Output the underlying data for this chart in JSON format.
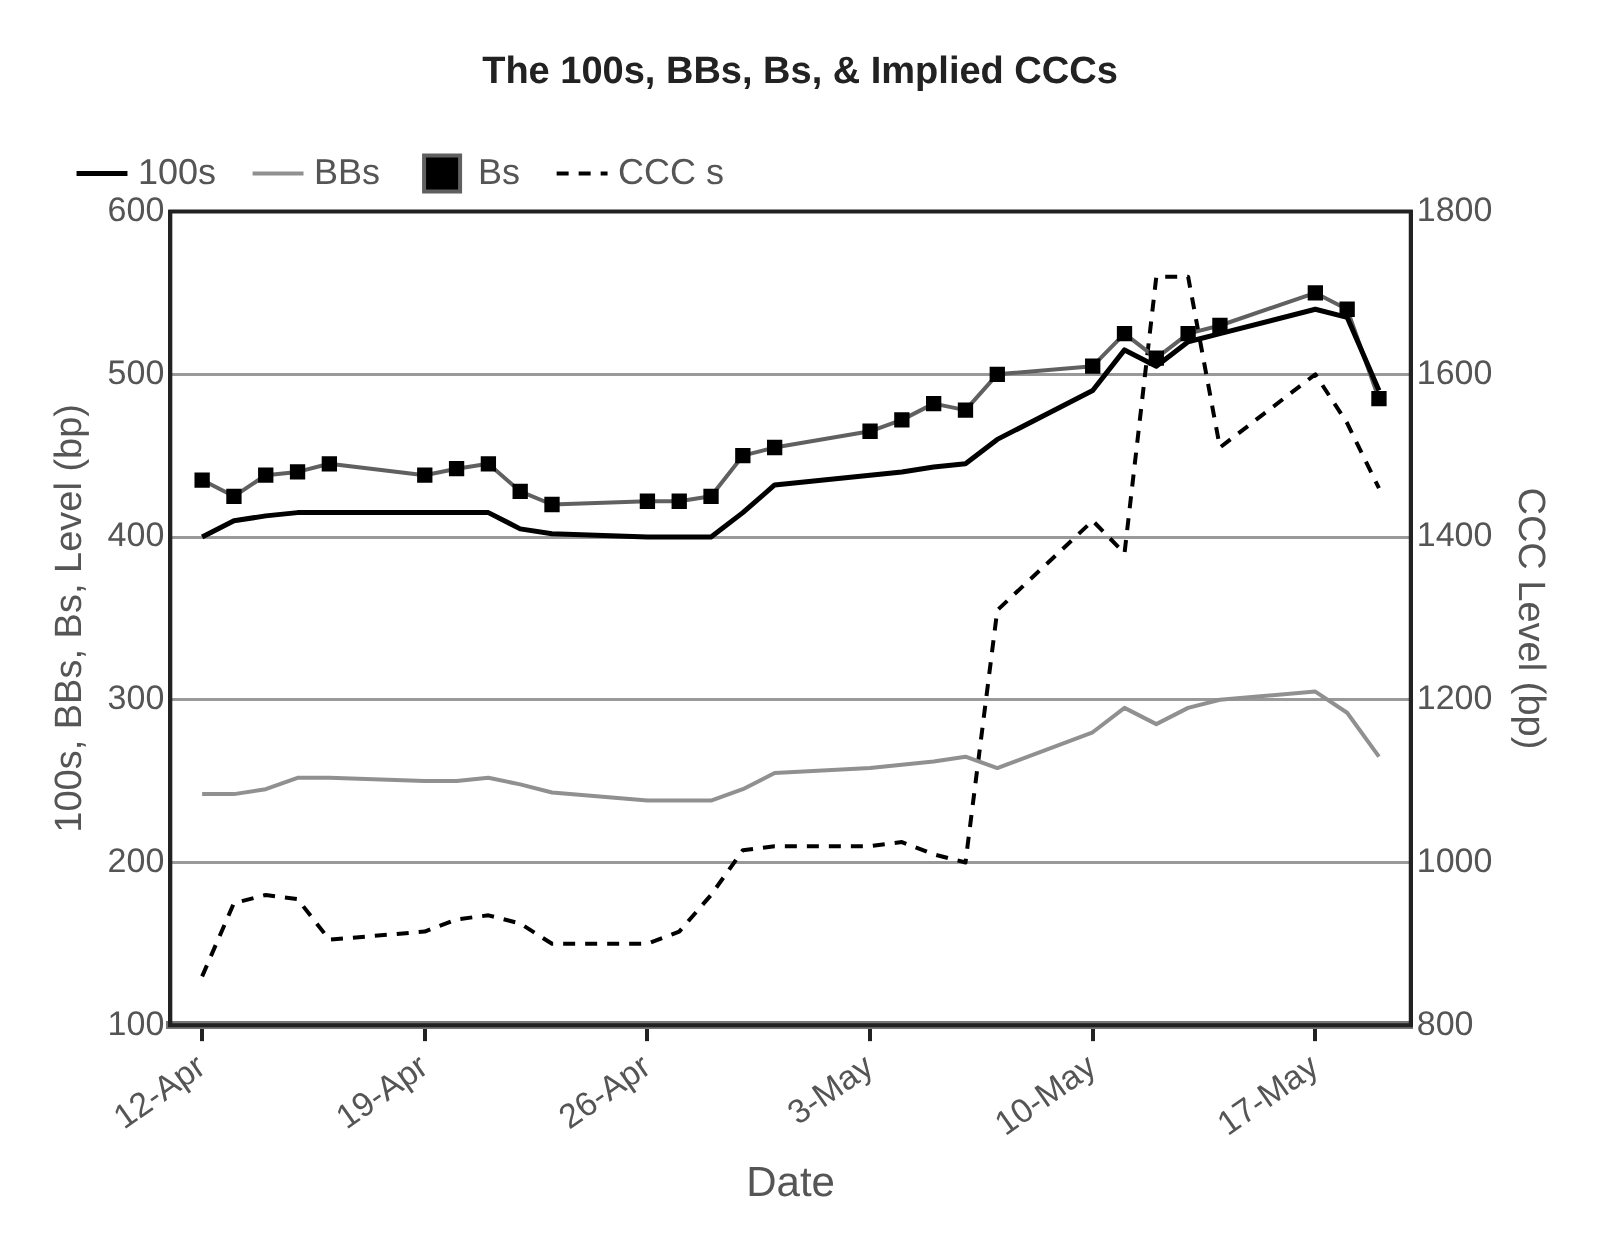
{
  "chart_data": {
    "type": "line",
    "title": "The 100s, BBs, Bs, & Implied CCCs",
    "xlabel": "Date",
    "ylabel": "100s, BBs, Bs, Level (bp)",
    "y2label": "CCC Level (bp)",
    "x": [
      "--04-12",
      "--04-13",
      "--04-14",
      "--04-15",
      "--04-16",
      "--04-19",
      "--04-20",
      "--04-21",
      "--04-22",
      "--04-23",
      "--04-26",
      "--04-27",
      "--04-28",
      "--04-29",
      "--04-30",
      "--05-03",
      "--05-04",
      "--05-05",
      "--05-06",
      "--05-07",
      "--05-10",
      "--05-11",
      "--05-12",
      "--05-13",
      "--05-14",
      "--05-17",
      "--05-18",
      "--05-19"
    ],
    "series": [
      {
        "name": "100s",
        "color": "#000000",
        "marker": "none",
        "line_style": "solid",
        "values": [
          400,
          410,
          413,
          415,
          415,
          415,
          415,
          415,
          405,
          402,
          400,
          400,
          400,
          415,
          432,
          438,
          440,
          443,
          445,
          460,
          490,
          515,
          505,
          520,
          525,
          540,
          535,
          490
        ]
      },
      {
        "name": "BBs",
        "color": "#909090",
        "marker": "none",
        "line_style": "solid",
        "values": [
          242,
          242,
          245,
          252,
          252,
          250,
          250,
          252,
          248,
          243,
          238,
          238,
          238,
          245,
          255,
          258,
          260,
          262,
          265,
          258,
          280,
          295,
          285,
          295,
          300,
          305,
          292,
          265
        ]
      },
      {
        "name": "Bs",
        "color": "#606060",
        "marker": "square",
        "line_style": "solid",
        "values": [
          435,
          425,
          438,
          440,
          445,
          438,
          442,
          445,
          428,
          420,
          422,
          422,
          425,
          450,
          455,
          465,
          472,
          482,
          478,
          500,
          505,
          525,
          510,
          525,
          530,
          550,
          540,
          485
        ]
      },
      {
        "name": "CCC s",
        "color": "#000000",
        "marker": "none",
        "line_style": "dashed",
        "axis": "y2",
        "values": [
          860,
          950,
          960,
          955,
          905,
          915,
          930,
          935,
          925,
          900,
          900,
          915,
          960,
          1015,
          1020,
          1020,
          1025,
          1010,
          1000,
          1310,
          1420,
          1380,
          1720,
          1720,
          1510,
          1600,
          1540,
          1460
        ]
      }
    ],
    "xlim": [
      "--04-11",
      "--05-20"
    ],
    "xticks": [
      {
        "value": "--04-12",
        "label": "12-Apr"
      },
      {
        "value": "--04-19",
        "label": "19-Apr"
      },
      {
        "value": "--04-26",
        "label": "26-Apr"
      },
      {
        "value": "--05-03",
        "label": "3-May"
      },
      {
        "value": "--05-10",
        "label": "10-May"
      },
      {
        "value": "--05-17",
        "label": "17-May"
      }
    ],
    "ylim": [
      100,
      600
    ],
    "yticks": [
      100,
      200,
      300,
      400,
      500,
      600
    ],
    "y2lim": [
      800,
      1800
    ],
    "y2ticks": [
      800,
      1000,
      1200,
      1400,
      1600,
      1800
    ],
    "grid": "y",
    "legend": "top left"
  }
}
